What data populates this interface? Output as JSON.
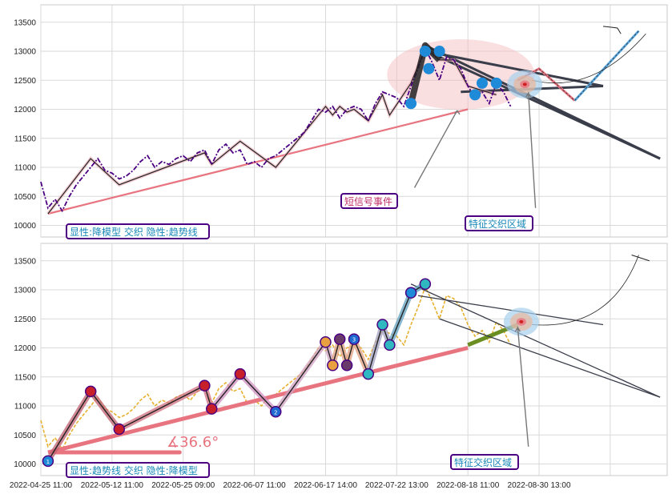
{
  "chart_data": [
    {
      "type": "line",
      "panel": "top",
      "ylim": [
        9800,
        13800
      ],
      "yticks": [
        10000,
        10500,
        11000,
        11500,
        12000,
        12500,
        13000,
        13500
      ],
      "grid": true,
      "price": [
        [
          0,
          10750
        ],
        [
          2,
          10300
        ],
        [
          4,
          10450
        ],
        [
          6,
          10250
        ],
        [
          8,
          10500
        ],
        [
          10,
          10700
        ],
        [
          12,
          10850
        ],
        [
          14,
          11000
        ],
        [
          16,
          11150
        ],
        [
          18,
          10950
        ],
        [
          20,
          10900
        ],
        [
          22,
          10800
        ],
        [
          24,
          10850
        ],
        [
          26,
          10950
        ],
        [
          28,
          11100
        ],
        [
          30,
          11200
        ],
        [
          32,
          11000
        ],
        [
          34,
          11100
        ],
        [
          36,
          11050
        ],
        [
          38,
          11150
        ],
        [
          40,
          11200
        ],
        [
          42,
          11100
        ],
        [
          44,
          11250
        ],
        [
          46,
          11300
        ],
        [
          48,
          11050
        ],
        [
          50,
          11300
        ],
        [
          52,
          11400
        ],
        [
          54,
          11250
        ],
        [
          56,
          11300
        ],
        [
          58,
          11050
        ],
        [
          60,
          11100
        ],
        [
          62,
          11000
        ],
        [
          64,
          11150
        ],
        [
          66,
          11200
        ],
        [
          68,
          11300
        ],
        [
          70,
          11400
        ],
        [
          72,
          11500
        ],
        [
          74,
          11600
        ],
        [
          76,
          11800
        ],
        [
          78,
          12000
        ],
        [
          80,
          11950
        ],
        [
          82,
          12050
        ],
        [
          84,
          11850
        ],
        [
          86,
          12000
        ],
        [
          88,
          12050
        ],
        [
          90,
          12000
        ],
        [
          92,
          11800
        ],
        [
          94,
          12100
        ],
        [
          96,
          12300
        ],
        [
          98,
          12250
        ],
        [
          100,
          12200
        ],
        [
          102,
          12050
        ],
        [
          104,
          12400
        ],
        [
          106,
          12700
        ],
        [
          108,
          13050
        ],
        [
          110,
          12800
        ],
        [
          112,
          12500
        ],
        [
          114,
          12900
        ],
        [
          116,
          12850
        ],
        [
          118,
          12700
        ],
        [
          120,
          12400
        ],
        [
          122,
          12200
        ],
        [
          124,
          12300
        ],
        [
          126,
          12100
        ],
        [
          128,
          12450
        ],
        [
          130,
          12300
        ],
        [
          132,
          12050
        ]
      ],
      "trendline": {
        "from": [
          2,
          10200
        ],
        "to": [
          120,
          12000
        ]
      },
      "model_zigzag": [
        [
          2,
          10200
        ],
        [
          14,
          11150
        ],
        [
          22,
          10700
        ],
        [
          46,
          11250
        ],
        [
          48,
          11050
        ],
        [
          56,
          11450
        ],
        [
          66,
          11000
        ],
        [
          80,
          12050
        ],
        [
          82,
          11900
        ],
        [
          84,
          12050
        ],
        [
          86,
          11950
        ],
        [
          88,
          12000
        ],
        [
          92,
          11800
        ],
        [
          96,
          12250
        ],
        [
          98,
          11900
        ],
        [
          104,
          12450
        ],
        [
          108,
          13050
        ],
        [
          112,
          12850
        ],
        [
          116,
          12850
        ],
        [
          120,
          12400
        ],
        [
          128,
          12250
        ]
      ],
      "thick_segment": [
        [
          104,
          12100
        ],
        [
          108,
          13100
        ],
        [
          112,
          12850
        ]
      ],
      "forecast": [
        [
          134,
          12500
        ],
        [
          140,
          12700
        ],
        [
          150,
          12150
        ],
        [
          168,
          13350
        ]
      ],
      "converging_lines": [
        [
          [
            108,
            13100
          ],
          [
            174,
            11150
          ]
        ],
        [
          [
            108,
            13000
          ],
          [
            158,
            12400
          ]
        ],
        [
          [
            112,
            12900
          ],
          [
            174,
            11150
          ]
        ],
        [
          [
            118,
            12300
          ],
          [
            158,
            12400
          ]
        ]
      ],
      "event_points": [
        [
          104,
          12100
        ],
        [
          108,
          13000
        ],
        [
          109,
          12700
        ],
        [
          112,
          13000
        ],
        [
          122,
          12250
        ],
        [
          124,
          12450
        ],
        [
          128,
          12450
        ]
      ],
      "annotations": {
        "event_label": "短信号事件",
        "zone_label": "特征交织区域",
        "legend_box": "显性:降模型 交织 隐性:趋势线"
      }
    },
    {
      "type": "line",
      "panel": "bottom",
      "ylim": [
        9800,
        13800
      ],
      "yticks": [
        10000,
        10500,
        11000,
        11500,
        12000,
        12500,
        13000,
        13500
      ],
      "xticks": [
        "2022-04-25 11:00",
        "2022-05-12 11:00",
        "2022-05-25 09:00",
        "2022-06-07 11:00",
        "2022-06-17 14:00",
        "2022-07-22 13:00",
        "2022-08-18 11:00",
        "2022-08-30 13:00"
      ],
      "grid": true,
      "angle_label": "∡36.6°",
      "trendline": {
        "from": [
          2,
          10200
        ],
        "to": [
          120,
          12000
        ]
      },
      "trend_extension": {
        "from": [
          120,
          12050
        ],
        "to": [
          134,
          12400
        ]
      },
      "zigzag": [
        [
          2,
          10050
        ],
        [
          14,
          11250
        ],
        [
          22,
          10600
        ],
        [
          46,
          11350
        ],
        [
          48,
          10950
        ],
        [
          56,
          11550
        ],
        [
          66,
          10900
        ],
        [
          80,
          12100
        ],
        [
          82,
          11700
        ],
        [
          84,
          12150
        ],
        [
          86,
          11700
        ],
        [
          88,
          12150
        ],
        [
          92,
          11550
        ],
        [
          96,
          12400
        ],
        [
          98,
          12050
        ],
        [
          104,
          12950
        ],
        [
          108,
          13100
        ]
      ],
      "pivot_points": [
        [
          2,
          10050
        ],
        [
          14,
          11250
        ],
        [
          22,
          10600
        ],
        [
          46,
          11350
        ],
        [
          48,
          10950
        ],
        [
          56,
          11550
        ],
        [
          66,
          10900
        ],
        [
          80,
          12100
        ],
        [
          82,
          11700
        ],
        [
          84,
          12150
        ],
        [
          86,
          11700
        ],
        [
          88,
          12150
        ],
        [
          92,
          11550
        ],
        [
          96,
          12400
        ],
        [
          98,
          12050
        ],
        [
          104,
          12950
        ],
        [
          108,
          13100
        ]
      ],
      "pivot_numbers": [
        "1",
        "2",
        "3"
      ],
      "annotations": {
        "zone_label": "特征交织区域",
        "legend_box": "显性:趋势线 交织 隐性:降模型"
      }
    }
  ],
  "colors": {
    "price_top": "#4b0082",
    "price_bottom": "#e8b030",
    "trend": "#e87480",
    "zigzag": "#222222",
    "event": "#1f8ad8",
    "label": "#1a88b8",
    "label_red": "#c0306a",
    "frame": "#4b0082",
    "forecast": "#5aa8e0",
    "forecast_alt": "#e87480",
    "extension": "#6b8e23"
  }
}
